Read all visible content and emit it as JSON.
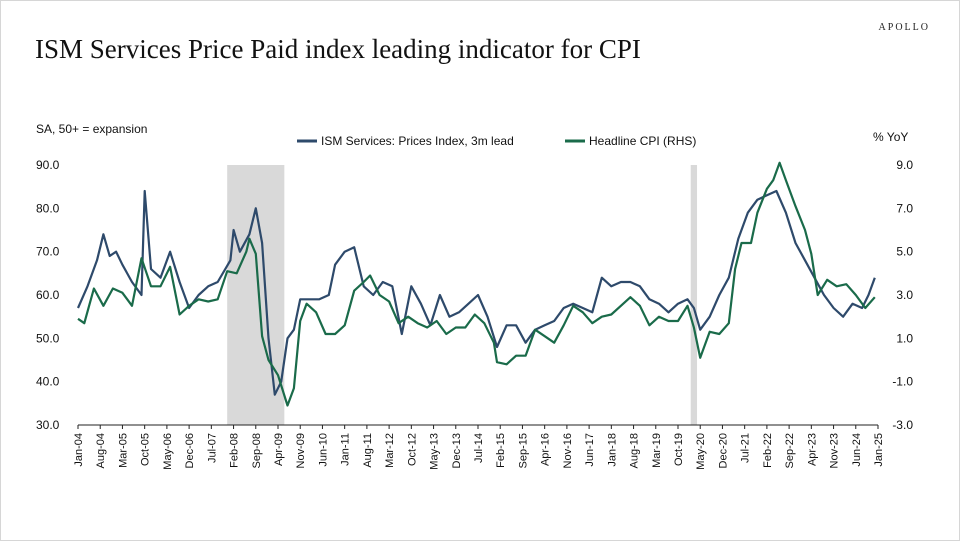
{
  "header": {
    "brand": "APOLLO",
    "title": "ISM Services Price Paid index leading indicator for CPI"
  },
  "chart_data": {
    "type": "line",
    "left_axis_label": "SA, 50+ = expansion",
    "right_axis_label": "% YoY",
    "left_ylim": [
      30,
      90
    ],
    "right_ylim": [
      -3,
      9
    ],
    "left_ticks": [
      "30.0",
      "40.0",
      "50.0",
      "60.0",
      "70.0",
      "80.0",
      "90.0"
    ],
    "right_ticks": [
      "-3.0",
      "-1.0",
      "1.0",
      "3.0",
      "5.0",
      "7.0",
      "9.0"
    ],
    "x_range": [
      "2004-01",
      "2025-01"
    ],
    "x_ticks": [
      "Jan-04",
      "Aug-04",
      "Mar-05",
      "Oct-05",
      "May-06",
      "Dec-06",
      "Jul-07",
      "Feb-08",
      "Sep-08",
      "Apr-09",
      "Nov-09",
      "Jun-10",
      "Jan-11",
      "Aug-11",
      "Mar-12",
      "Oct-12",
      "May-13",
      "Dec-13",
      "Jul-14",
      "Feb-15",
      "Sep-15",
      "Apr-16",
      "Nov-16",
      "Jun-17",
      "Jan-18",
      "Aug-18",
      "Mar-19",
      "Oct-19",
      "May-20",
      "Dec-20",
      "Jul-21",
      "Feb-22",
      "Sep-22",
      "Apr-23",
      "Nov-23",
      "Jun-24",
      "Jan-25"
    ],
    "recessions": [
      [
        "2007-12",
        "2009-06"
      ],
      [
        "2020-02",
        "2020-04"
      ]
    ],
    "legend_placement": "top-center",
    "series": [
      {
        "name": "ISM Services: Prices Index, 3m lead",
        "axis": "left",
        "color": "#2e4a6b",
        "points": [
          [
            "2004-01",
            57
          ],
          [
            "2004-04",
            62
          ],
          [
            "2004-07",
            68
          ],
          [
            "2004-09",
            74
          ],
          [
            "2004-11",
            69
          ],
          [
            "2005-01",
            70
          ],
          [
            "2005-03",
            67
          ],
          [
            "2005-06",
            63
          ],
          [
            "2005-09",
            60
          ],
          [
            "2005-10",
            84
          ],
          [
            "2005-12",
            66
          ],
          [
            "2006-03",
            64
          ],
          [
            "2006-06",
            70
          ],
          [
            "2006-09",
            63
          ],
          [
            "2006-12",
            57
          ],
          [
            "2007-03",
            60
          ],
          [
            "2007-06",
            62
          ],
          [
            "2007-09",
            63
          ],
          [
            "2008-01",
            68
          ],
          [
            "2008-02",
            75
          ],
          [
            "2008-04",
            70
          ],
          [
            "2008-07",
            74
          ],
          [
            "2008-09",
            80
          ],
          [
            "2008-11",
            72
          ],
          [
            "2009-01",
            50
          ],
          [
            "2009-03",
            37
          ],
          [
            "2009-05",
            40
          ],
          [
            "2009-07",
            50
          ],
          [
            "2009-09",
            52
          ],
          [
            "2009-11",
            59
          ],
          [
            "2010-02",
            59
          ],
          [
            "2010-05",
            59
          ],
          [
            "2010-08",
            60
          ],
          [
            "2010-10",
            67
          ],
          [
            "2011-01",
            70
          ],
          [
            "2011-04",
            71
          ],
          [
            "2011-07",
            62
          ],
          [
            "2011-10",
            60
          ],
          [
            "2012-01",
            63
          ],
          [
            "2012-04",
            62
          ],
          [
            "2012-07",
            51
          ],
          [
            "2012-10",
            62
          ],
          [
            "2013-01",
            58
          ],
          [
            "2013-04",
            53
          ],
          [
            "2013-07",
            60
          ],
          [
            "2013-10",
            55
          ],
          [
            "2014-01",
            56
          ],
          [
            "2014-04",
            58
          ],
          [
            "2014-07",
            60
          ],
          [
            "2014-10",
            55
          ],
          [
            "2015-01",
            48
          ],
          [
            "2015-04",
            53
          ],
          [
            "2015-07",
            53
          ],
          [
            "2015-10",
            49
          ],
          [
            "2016-01",
            52
          ],
          [
            "2016-04",
            53
          ],
          [
            "2016-07",
            54
          ],
          [
            "2016-10",
            57
          ],
          [
            "2017-01",
            58
          ],
          [
            "2017-04",
            57
          ],
          [
            "2017-07",
            56
          ],
          [
            "2017-10",
            64
          ],
          [
            "2018-01",
            62
          ],
          [
            "2018-04",
            63
          ],
          [
            "2018-07",
            63
          ],
          [
            "2018-10",
            62
          ],
          [
            "2019-01",
            59
          ],
          [
            "2019-04",
            58
          ],
          [
            "2019-07",
            56
          ],
          [
            "2019-10",
            58
          ],
          [
            "2020-01",
            59
          ],
          [
            "2020-03",
            57
          ],
          [
            "2020-05",
            52
          ],
          [
            "2020-08",
            55
          ],
          [
            "2020-11",
            60
          ],
          [
            "2021-02",
            64
          ],
          [
            "2021-05",
            73
          ],
          [
            "2021-08",
            79
          ],
          [
            "2021-11",
            82
          ],
          [
            "2022-02",
            83
          ],
          [
            "2022-05",
            84
          ],
          [
            "2022-08",
            79
          ],
          [
            "2022-11",
            72
          ],
          [
            "2023-02",
            68
          ],
          [
            "2023-05",
            64
          ],
          [
            "2023-08",
            60
          ],
          [
            "2023-11",
            57
          ],
          [
            "2024-02",
            55
          ],
          [
            "2024-05",
            58
          ],
          [
            "2024-08",
            57
          ],
          [
            "2024-10",
            60
          ],
          [
            "2024-12",
            64
          ]
        ]
      },
      {
        "name": "Headline CPI (RHS)",
        "axis": "right",
        "color": "#1a6b4a",
        "points": [
          [
            "2004-01",
            1.9
          ],
          [
            "2004-03",
            1.7
          ],
          [
            "2004-06",
            3.3
          ],
          [
            "2004-09",
            2.5
          ],
          [
            "2004-12",
            3.3
          ],
          [
            "2005-03",
            3.1
          ],
          [
            "2005-06",
            2.5
          ],
          [
            "2005-09",
            4.7
          ],
          [
            "2005-12",
            3.4
          ],
          [
            "2006-03",
            3.4
          ],
          [
            "2006-06",
            4.3
          ],
          [
            "2006-09",
            2.1
          ],
          [
            "2006-12",
            2.5
          ],
          [
            "2007-03",
            2.8
          ],
          [
            "2007-06",
            2.7
          ],
          [
            "2007-09",
            2.8
          ],
          [
            "2007-12",
            4.1
          ],
          [
            "2008-03",
            4.0
          ],
          [
            "2008-06",
            5.0
          ],
          [
            "2008-07",
            5.6
          ],
          [
            "2008-09",
            4.9
          ],
          [
            "2008-11",
            1.1
          ],
          [
            "2009-01",
            0.0
          ],
          [
            "2009-04",
            -0.7
          ],
          [
            "2009-07",
            -2.1
          ],
          [
            "2009-09",
            -1.3
          ],
          [
            "2009-11",
            1.8
          ],
          [
            "2010-01",
            2.6
          ],
          [
            "2010-04",
            2.2
          ],
          [
            "2010-07",
            1.2
          ],
          [
            "2010-10",
            1.2
          ],
          [
            "2011-01",
            1.6
          ],
          [
            "2011-04",
            3.2
          ],
          [
            "2011-07",
            3.6
          ],
          [
            "2011-09",
            3.9
          ],
          [
            "2011-12",
            3.0
          ],
          [
            "2012-03",
            2.7
          ],
          [
            "2012-06",
            1.7
          ],
          [
            "2012-09",
            2.0
          ],
          [
            "2012-12",
            1.7
          ],
          [
            "2013-03",
            1.5
          ],
          [
            "2013-06",
            1.8
          ],
          [
            "2013-09",
            1.2
          ],
          [
            "2013-12",
            1.5
          ],
          [
            "2014-03",
            1.5
          ],
          [
            "2014-06",
            2.1
          ],
          [
            "2014-09",
            1.7
          ],
          [
            "2014-12",
            0.8
          ],
          [
            "2015-01",
            -0.1
          ],
          [
            "2015-04",
            -0.2
          ],
          [
            "2015-07",
            0.2
          ],
          [
            "2015-10",
            0.2
          ],
          [
            "2016-01",
            1.4
          ],
          [
            "2016-04",
            1.1
          ],
          [
            "2016-07",
            0.8
          ],
          [
            "2016-10",
            1.6
          ],
          [
            "2017-01",
            2.5
          ],
          [
            "2017-04",
            2.2
          ],
          [
            "2017-07",
            1.7
          ],
          [
            "2017-10",
            2.0
          ],
          [
            "2018-01",
            2.1
          ],
          [
            "2018-04",
            2.5
          ],
          [
            "2018-07",
            2.9
          ],
          [
            "2018-10",
            2.5
          ],
          [
            "2019-01",
            1.6
          ],
          [
            "2019-04",
            2.0
          ],
          [
            "2019-07",
            1.8
          ],
          [
            "2019-10",
            1.8
          ],
          [
            "2020-01",
            2.5
          ],
          [
            "2020-03",
            1.5
          ],
          [
            "2020-05",
            0.1
          ],
          [
            "2020-08",
            1.3
          ],
          [
            "2020-11",
            1.2
          ],
          [
            "2021-02",
            1.7
          ],
          [
            "2021-04",
            4.2
          ],
          [
            "2021-06",
            5.4
          ],
          [
            "2021-09",
            5.4
          ],
          [
            "2021-11",
            6.8
          ],
          [
            "2022-02",
            7.9
          ],
          [
            "2022-04",
            8.3
          ],
          [
            "2022-06",
            9.1
          ],
          [
            "2022-08",
            8.3
          ],
          [
            "2022-11",
            7.1
          ],
          [
            "2023-02",
            6.0
          ],
          [
            "2023-04",
            4.9
          ],
          [
            "2023-06",
            3.0
          ],
          [
            "2023-09",
            3.7
          ],
          [
            "2023-12",
            3.4
          ],
          [
            "2024-03",
            3.5
          ],
          [
            "2024-06",
            3.0
          ],
          [
            "2024-09",
            2.4
          ],
          [
            "2024-12",
            2.9
          ]
        ]
      }
    ]
  }
}
